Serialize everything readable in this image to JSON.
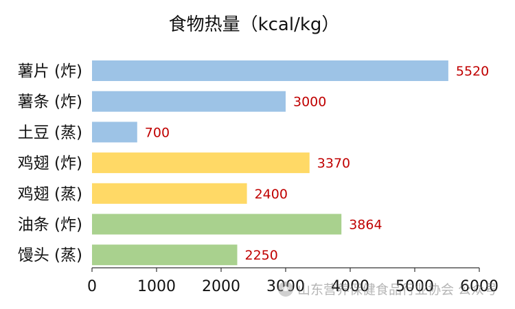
{
  "chart_data": {
    "type": "bar",
    "orientation": "horizontal",
    "title": "食物热量（kcal/kg）",
    "xlabel": "",
    "ylabel": "",
    "categories": [
      "薯片 (炸)",
      "薯条 (炸)",
      "土豆 (蒸)",
      "鸡翅 (炸)",
      "鸡翅 (蒸)",
      "油条 (炸)",
      "馒头 (蒸)"
    ],
    "values": [
      5520,
      3000,
      700,
      3370,
      2400,
      3864,
      2250
    ],
    "value_labels": [
      "5520",
      "3000",
      "700",
      "3370",
      "2400",
      "3864",
      "2250"
    ],
    "bar_colors": [
      "#9dc3e6",
      "#9dc3e6",
      "#9dc3e6",
      "#ffd966",
      "#ffd966",
      "#a9d18e",
      "#a9d18e"
    ],
    "label_color": "#c00000",
    "xlim": [
      0,
      6000
    ],
    "x_ticks": [
      0,
      1000,
      2000,
      3000,
      4000,
      5000,
      6000
    ],
    "x_tick_labels": [
      "0",
      "1000",
      "2000",
      "3000",
      "4000",
      "5000",
      "6000"
    ],
    "grid": false,
    "legend": "none"
  },
  "watermark": {
    "text": "山东营养保健食品行业协会 公众号"
  }
}
